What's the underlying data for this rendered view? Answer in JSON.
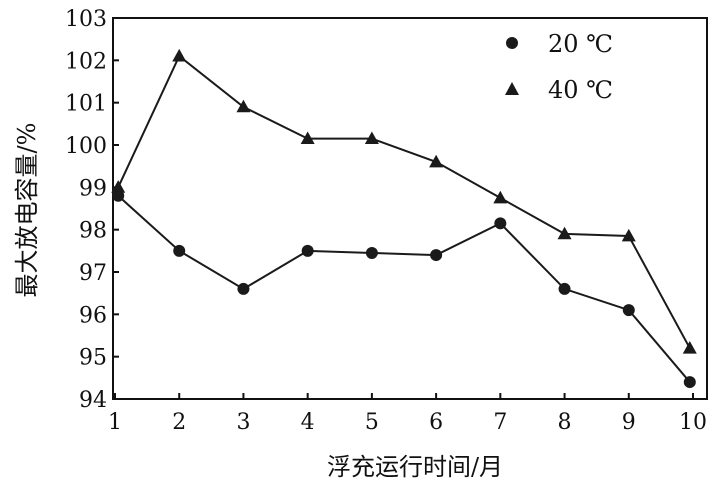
{
  "chart_data": {
    "type": "line",
    "title": "",
    "xlabel": "浮充运行时间/月",
    "ylabel": "最大放电容量/%",
    "x": [
      1,
      2,
      3,
      4,
      5,
      6,
      7,
      8,
      9,
      10
    ],
    "xlim": [
      1,
      10
    ],
    "ylim": [
      94,
      103
    ],
    "xticks": [
      "1",
      "2",
      "3",
      "4",
      "5",
      "6",
      "7",
      "8",
      "9",
      "10"
    ],
    "yticks": [
      "94",
      "95",
      "96",
      "97",
      "98",
      "99",
      "100",
      "101",
      "102",
      "103"
    ],
    "grid": false,
    "legend_position": "top-right",
    "series": [
      {
        "name": "20 ℃",
        "marker": "circle",
        "color": "#1a1a1a",
        "x": [
          1.05,
          2,
          3,
          4,
          5,
          6,
          7,
          8,
          9,
          9.95
        ],
        "values": [
          98.8,
          97.5,
          96.6,
          97.5,
          97.45,
          97.4,
          98.15,
          96.6,
          96.1,
          94.4
        ]
      },
      {
        "name": "40 ℃",
        "marker": "triangle",
        "color": "#1a1a1a",
        "x": [
          1.05,
          2,
          3,
          4,
          5,
          6,
          7,
          8,
          9,
          9.95
        ],
        "values": [
          99.0,
          102.1,
          100.9,
          100.15,
          100.15,
          99.6,
          98.75,
          97.9,
          97.85,
          95.2
        ]
      }
    ]
  }
}
